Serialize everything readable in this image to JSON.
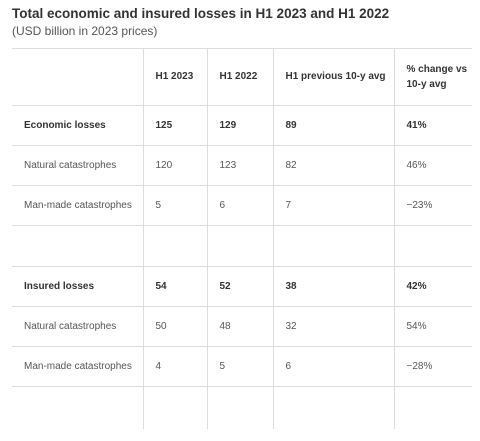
{
  "chart_data": {
    "type": "table",
    "title": "Total economic and insured losses in H1 2023 and H1 2022",
    "subtitle": "(USD billion in 2023 prices)",
    "columns": [
      "",
      "H1 2023",
      "H1 2022",
      "H1 previous 10-y avg",
      "% change vs 10-y avg"
    ],
    "rows": [
      {
        "label": "Economic losses",
        "values": [
          "125",
          "129",
          "89",
          "41%"
        ],
        "bold": true
      },
      {
        "label": "Natural catastrophes",
        "values": [
          "120",
          "123",
          "82",
          "46%"
        ],
        "bold": false
      },
      {
        "label": "Man-made catastrophes",
        "values": [
          "5",
          "6",
          "7",
          "−23%"
        ],
        "bold": false
      },
      {
        "label": "Insured losses",
        "values": [
          "54",
          "52",
          "38",
          "42%"
        ],
        "bold": true
      },
      {
        "label": "Natural catastrophes",
        "values": [
          "50",
          "48",
          "32",
          "54%"
        ],
        "bold": false
      },
      {
        "label": "Man-made catastrophes",
        "values": [
          "4",
          "5",
          "6",
          "−28%"
        ],
        "bold": false
      }
    ]
  }
}
